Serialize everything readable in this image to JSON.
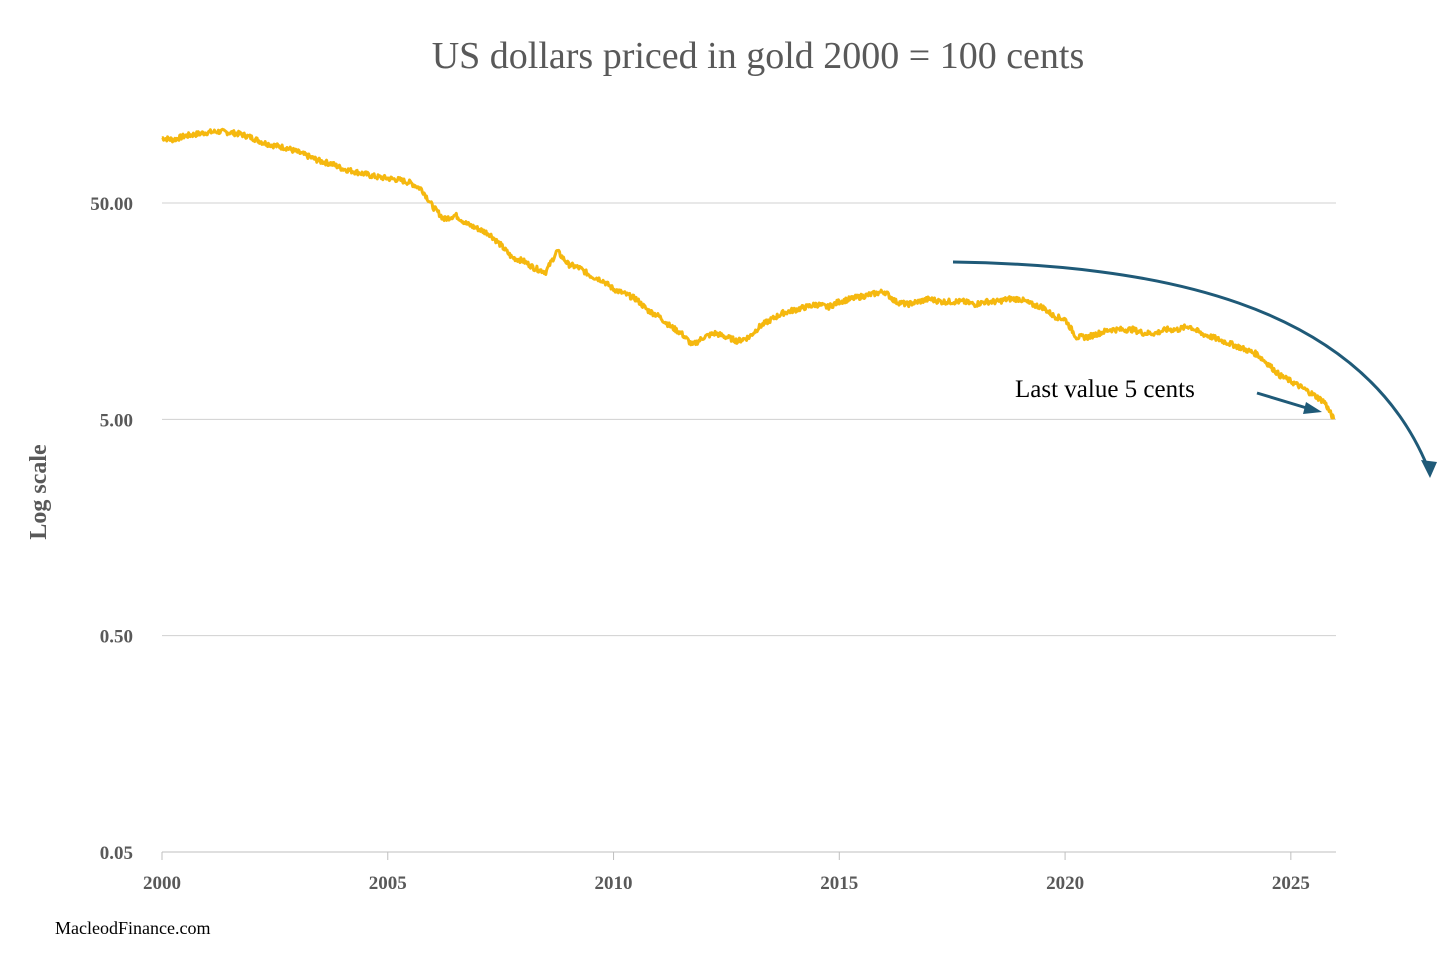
{
  "colors": {
    "series": "#f5b80f",
    "arrow": "#1f5a78",
    "text": "#595959",
    "grid": "#d0d0d0"
  },
  "chart_data": {
    "type": "line",
    "title": "US dollars priced in gold 2000 = 100 cents",
    "xlabel": "",
    "ylabel": "Log scale",
    "yscale": "log",
    "ylim": [
      0.05,
      200
    ],
    "xlim": [
      2000,
      2026
    ],
    "yticks": [
      {
        "value": 0.05,
        "label": "0.05"
      },
      {
        "value": 0.5,
        "label": "0.50"
      },
      {
        "value": 5,
        "label": "5.00"
      },
      {
        "value": 50,
        "label": "50.00"
      }
    ],
    "xticks": [
      {
        "value": 2000,
        "label": "2000"
      },
      {
        "value": 2005,
        "label": "2005"
      },
      {
        "value": 2010,
        "label": "2010"
      },
      {
        "value": 2015,
        "label": "2015"
      },
      {
        "value": 2020,
        "label": "2020"
      },
      {
        "value": 2025,
        "label": "2025"
      }
    ],
    "grid": true,
    "legend": "none",
    "series": [
      {
        "x": [
          2000.0,
          2000.25,
          2000.5,
          2000.75,
          2001.0,
          2001.25,
          2001.5,
          2001.75,
          2002.0,
          2002.25,
          2002.5,
          2002.75,
          2003.0,
          2003.25,
          2003.5,
          2003.75,
          2004.0,
          2004.25,
          2004.5,
          2004.75,
          2005.0,
          2005.25,
          2005.5,
          2005.75,
          2006.0,
          2006.25,
          2006.5,
          2006.75,
          2007.0,
          2007.25,
          2007.5,
          2007.75,
          2008.0,
          2008.25,
          2008.5,
          2008.75,
          2009.0,
          2009.25,
          2009.5,
          2009.75,
          2010.0,
          2010.25,
          2010.5,
          2010.75,
          2011.0,
          2011.25,
          2011.5,
          2011.75,
          2012.0,
          2012.25,
          2012.5,
          2012.75,
          2013.0,
          2013.25,
          2013.5,
          2013.75,
          2014.0,
          2014.25,
          2014.5,
          2014.75,
          2015.0,
          2015.25,
          2015.5,
          2015.75,
          2016.0,
          2016.25,
          2016.5,
          2016.75,
          2017.0,
          2017.25,
          2017.5,
          2017.75,
          2018.0,
          2018.25,
          2018.5,
          2018.75,
          2019.0,
          2019.25,
          2019.5,
          2019.75,
          2020.0,
          2020.25,
          2020.5,
          2020.75,
          2021.0,
          2021.25,
          2021.5,
          2021.75,
          2022.0,
          2022.25,
          2022.5,
          2022.75,
          2023.0,
          2023.25,
          2023.5,
          2023.75,
          2024.0,
          2024.25,
          2024.5,
          2024.75,
          2025.0,
          2025.25,
          2025.5,
          2025.75,
          2025.95
        ],
        "values": [
          100,
          98,
          102,
          104,
          106,
          107,
          106,
          104,
          100,
          95,
          92,
          90,
          86,
          82,
          78,
          76,
          72,
          70,
          68,
          66,
          65,
          64,
          62,
          58,
          48,
          42,
          44,
          40,
          38,
          36,
          32,
          28,
          27,
          25,
          24,
          30,
          26,
          25,
          23,
          22,
          20,
          19,
          18,
          16,
          15,
          13.5,
          12.5,
          11,
          12,
          12.5,
          12,
          11.5,
          12,
          13.5,
          14.5,
          15.5,
          16,
          16.5,
          17,
          16.5,
          17.5,
          18,
          18.5,
          19,
          19.5,
          17.5,
          17,
          17.5,
          18,
          17.5,
          17.5,
          17.5,
          17,
          17.5,
          17.5,
          18,
          18,
          17,
          16.5,
          15,
          14.5,
          12,
          12,
          12.5,
          13,
          13,
          13,
          12.5,
          12.5,
          13,
          13,
          13.5,
          12.5,
          12,
          11.5,
          11,
          10.5,
          10,
          9,
          8,
          7.5,
          7,
          6.5,
          6,
          5
        ]
      }
    ],
    "annotations": [
      {
        "text": "Last value 5 cents"
      }
    ],
    "source": "MacleodFinance.com"
  }
}
